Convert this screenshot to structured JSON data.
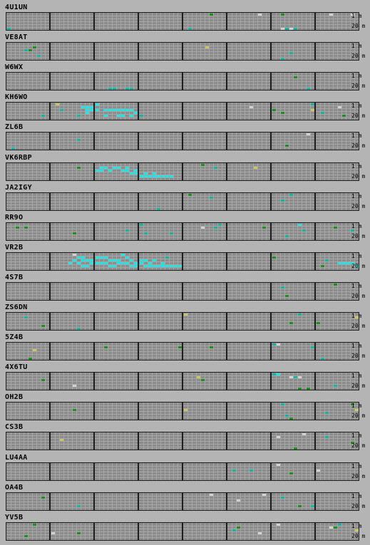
{
  "band_labels": {
    "top": "1 m",
    "bottom": "20 m"
  },
  "colors": {
    "background": "#b4b4b4",
    "cell": "#8c8c8c",
    "cell_line": "#a6a6a6",
    "block_border": "#1e1e1e",
    "cyan": "#19e6e6",
    "teal": "#14b4a0",
    "green": "#1e8c1e",
    "yellow": "#c8c85a",
    "white": "#d2d2d2"
  },
  "grid": {
    "blocks": 8,
    "cols_per_block": 10,
    "rows": 6
  },
  "stations": [
    {
      "callsign": "4U1UN",
      "cells": [
        [
          0,
          5,
          "teal"
        ],
        [
          46,
          0,
          "green"
        ],
        [
          57,
          0,
          "white"
        ],
        [
          62,
          0,
          "green"
        ],
        [
          73,
          0,
          "white"
        ],
        [
          78,
          0,
          "white"
        ],
        [
          41,
          5,
          "teal"
        ],
        [
          62,
          5,
          "white"
        ],
        [
          63,
          5,
          "teal"
        ],
        [
          64,
          5,
          "white"
        ],
        [
          65,
          5,
          "teal"
        ]
      ]
    },
    {
      "callsign": "VE8AT",
      "cells": [
        [
          6,
          1,
          "green"
        ],
        [
          5,
          2,
          "green"
        ],
        [
          4,
          2,
          "teal"
        ],
        [
          7,
          4,
          "teal"
        ],
        [
          64,
          3,
          "teal"
        ],
        [
          62,
          5,
          "teal"
        ],
        [
          45,
          1,
          "yellow"
        ]
      ]
    },
    {
      "callsign": "W6WX",
      "cells": [
        [
          23,
          5,
          "teal"
        ],
        [
          24,
          5,
          "teal"
        ],
        [
          27,
          5,
          "teal"
        ],
        [
          28,
          5,
          "teal"
        ],
        [
          65,
          1,
          "green"
        ],
        [
          68,
          5,
          "teal"
        ]
      ]
    },
    {
      "callsign": "KH6WO",
      "cells": [
        [
          11,
          0,
          "yellow"
        ],
        [
          12,
          2,
          "teal"
        ],
        [
          17,
          1,
          "cyan"
        ],
        [
          18,
          1,
          "cyan"
        ],
        [
          19,
          1,
          "cyan"
        ],
        [
          18,
          2,
          "cyan"
        ],
        [
          18,
          3,
          "cyan"
        ],
        [
          19,
          2,
          "cyan"
        ],
        [
          20,
          2,
          "cyan"
        ],
        [
          20,
          0,
          "cyan"
        ],
        [
          22,
          2,
          "cyan"
        ],
        [
          23,
          2,
          "cyan"
        ],
        [
          24,
          2,
          "cyan"
        ],
        [
          25,
          2,
          "cyan"
        ],
        [
          26,
          2,
          "cyan"
        ],
        [
          27,
          2,
          "cyan"
        ],
        [
          28,
          2,
          "cyan"
        ],
        [
          29,
          3,
          "cyan"
        ],
        [
          26,
          4,
          "cyan"
        ],
        [
          22,
          4,
          "cyan"
        ],
        [
          25,
          4,
          "cyan"
        ],
        [
          28,
          4,
          "cyan"
        ],
        [
          30,
          4,
          "teal"
        ],
        [
          55,
          1,
          "white"
        ],
        [
          60,
          2,
          "green"
        ],
        [
          62,
          3,
          "green"
        ],
        [
          69,
          0,
          "teal"
        ],
        [
          69,
          2,
          "yellow"
        ],
        [
          71,
          3,
          "teal"
        ],
        [
          75,
          1,
          "white"
        ],
        [
          76,
          4,
          "green"
        ],
        [
          8,
          4,
          "teal"
        ],
        [
          16,
          4,
          "teal"
        ]
      ]
    },
    {
      "callsign": "ZL6B",
      "cells": [
        [
          1,
          5,
          "teal"
        ],
        [
          16,
          2,
          "teal"
        ],
        [
          63,
          4,
          "green"
        ],
        [
          68,
          0,
          "white"
        ]
      ]
    },
    {
      "callsign": "VK6RBP",
      "cells": [
        [
          16,
          1,
          "green"
        ],
        [
          20,
          2,
          "cyan"
        ],
        [
          21,
          1,
          "cyan"
        ],
        [
          22,
          1,
          "cyan"
        ],
        [
          23,
          2,
          "cyan"
        ],
        [
          24,
          1,
          "cyan"
        ],
        [
          25,
          1,
          "cyan"
        ],
        [
          26,
          2,
          "cyan"
        ],
        [
          27,
          2,
          "cyan"
        ],
        [
          28,
          3,
          "cyan"
        ],
        [
          29,
          3,
          "cyan"
        ],
        [
          30,
          4,
          "cyan"
        ],
        [
          31,
          4,
          "cyan"
        ],
        [
          32,
          4,
          "cyan"
        ],
        [
          33,
          4,
          "cyan"
        ],
        [
          34,
          4,
          "cyan"
        ],
        [
          35,
          4,
          "cyan"
        ],
        [
          36,
          4,
          "cyan"
        ],
        [
          37,
          4,
          "cyan"
        ],
        [
          27,
          1,
          "cyan"
        ],
        [
          29,
          2,
          "cyan"
        ],
        [
          31,
          3,
          "cyan"
        ],
        [
          33,
          3,
          "cyan"
        ],
        [
          21,
          2,
          "cyan"
        ],
        [
          44,
          0,
          "green"
        ],
        [
          56,
          1,
          "yellow"
        ],
        [
          47,
          1,
          "teal"
        ]
      ]
    },
    {
      "callsign": "JA2IGY",
      "cells": [
        [
          34,
          5,
          "teal"
        ],
        [
          41,
          0,
          "green"
        ],
        [
          46,
          1,
          "teal"
        ],
        [
          62,
          2,
          "teal"
        ],
        [
          64,
          0,
          "teal"
        ]
      ]
    },
    {
      "callsign": "RR9O",
      "cells": [
        [
          2,
          1,
          "green"
        ],
        [
          4,
          1,
          "green"
        ],
        [
          15,
          3,
          "green"
        ],
        [
          27,
          2,
          "teal"
        ],
        [
          30,
          0,
          "teal"
        ],
        [
          31,
          3,
          "teal"
        ],
        [
          37,
          3,
          "teal"
        ],
        [
          44,
          1,
          "white"
        ],
        [
          47,
          1,
          "teal"
        ],
        [
          48,
          0,
          "teal"
        ],
        [
          66,
          0,
          "cyan"
        ],
        [
          67,
          2,
          "teal"
        ],
        [
          78,
          2,
          "teal"
        ],
        [
          74,
          1,
          "green"
        ],
        [
          58,
          1,
          "green"
        ],
        [
          63,
          4,
          "teal"
        ]
      ]
    },
    {
      "callsign": "VR2B",
      "cells": [
        [
          15,
          0,
          "white"
        ],
        [
          14,
          3,
          "cyan"
        ],
        [
          15,
          2,
          "cyan"
        ],
        [
          16,
          1,
          "cyan"
        ],
        [
          17,
          1,
          "cyan"
        ],
        [
          18,
          2,
          "cyan"
        ],
        [
          19,
          2,
          "cyan"
        ],
        [
          20,
          1,
          "cyan"
        ],
        [
          21,
          1,
          "cyan"
        ],
        [
          22,
          1,
          "cyan"
        ],
        [
          23,
          2,
          "cyan"
        ],
        [
          24,
          2,
          "cyan"
        ],
        [
          25,
          2,
          "cyan"
        ],
        [
          26,
          0,
          "cyan"
        ],
        [
          27,
          1,
          "cyan"
        ],
        [
          28,
          2,
          "cyan"
        ],
        [
          29,
          3,
          "cyan"
        ],
        [
          30,
          3,
          "cyan"
        ],
        [
          31,
          4,
          "cyan"
        ],
        [
          32,
          4,
          "cyan"
        ],
        [
          33,
          4,
          "cyan"
        ],
        [
          34,
          4,
          "cyan"
        ],
        [
          35,
          4,
          "cyan"
        ],
        [
          36,
          4,
          "cyan"
        ],
        [
          37,
          4,
          "cyan"
        ],
        [
          38,
          4,
          "cyan"
        ],
        [
          39,
          4,
          "cyan"
        ],
        [
          16,
          3,
          "cyan"
        ],
        [
          17,
          4,
          "cyan"
        ],
        [
          18,
          4,
          "cyan"
        ],
        [
          20,
          3,
          "cyan"
        ],
        [
          22,
          3,
          "cyan"
        ],
        [
          24,
          4,
          "cyan"
        ],
        [
          26,
          3,
          "cyan"
        ],
        [
          28,
          4,
          "cyan"
        ],
        [
          30,
          2,
          "cyan"
        ],
        [
          31,
          2,
          "cyan"
        ],
        [
          33,
          2,
          "cyan"
        ],
        [
          36,
          1,
          "teal"
        ],
        [
          35,
          3,
          "cyan"
        ],
        [
          21,
          3,
          "cyan"
        ],
        [
          23,
          4,
          "cyan"
        ],
        [
          17,
          2,
          "cyan"
        ],
        [
          19,
          3,
          "cyan"
        ],
        [
          25,
          3,
          "cyan"
        ],
        [
          27,
          3,
          "cyan"
        ],
        [
          29,
          4,
          "cyan"
        ],
        [
          32,
          3,
          "cyan"
        ],
        [
          60,
          1,
          "green"
        ],
        [
          71,
          4,
          "green"
        ],
        [
          75,
          3,
          "cyan"
        ],
        [
          76,
          3,
          "cyan"
        ],
        [
          77,
          3,
          "cyan"
        ],
        [
          78,
          3,
          "cyan"
        ],
        [
          79,
          4,
          "cyan"
        ],
        [
          72,
          2,
          "teal"
        ]
      ]
    },
    {
      "callsign": "4S7B",
      "cells": [
        [
          62,
          1,
          "teal"
        ],
        [
          63,
          4,
          "green"
        ],
        [
          74,
          0,
          "green"
        ]
      ]
    },
    {
      "callsign": "ZS6DN",
      "cells": [
        [
          4,
          1,
          "teal"
        ],
        [
          16,
          5,
          "teal"
        ],
        [
          40,
          0,
          "yellow"
        ],
        [
          66,
          0,
          "teal"
        ],
        [
          64,
          3,
          "green"
        ],
        [
          70,
          3,
          "green"
        ],
        [
          79,
          1,
          "yellow"
        ],
        [
          8,
          4,
          "green"
        ]
      ]
    },
    {
      "callsign": "5Z4B",
      "cells": [
        [
          6,
          2,
          "yellow"
        ],
        [
          5,
          5,
          "green"
        ],
        [
          22,
          1,
          "green"
        ],
        [
          39,
          1,
          "green"
        ],
        [
          46,
          1,
          "green"
        ],
        [
          60,
          0,
          "teal"
        ],
        [
          61,
          0,
          "white"
        ],
        [
          69,
          1,
          "teal"
        ],
        [
          71,
          5,
          "teal"
        ]
      ]
    },
    {
      "callsign": "4X6TU",
      "cells": [
        [
          8,
          2,
          "green"
        ],
        [
          15,
          4,
          "white"
        ],
        [
          43,
          1,
          "yellow"
        ],
        [
          44,
          2,
          "green"
        ],
        [
          60,
          0,
          "teal"
        ],
        [
          61,
          0,
          "cyan"
        ],
        [
          64,
          1,
          "white"
        ],
        [
          65,
          1,
          "teal"
        ],
        [
          66,
          1,
          "white"
        ],
        [
          66,
          5,
          "green"
        ],
        [
          68,
          5,
          "green"
        ],
        [
          74,
          4,
          "teal"
        ]
      ]
    },
    {
      "callsign": "OH2B",
      "cells": [
        [
          15,
          2,
          "green"
        ],
        [
          40,
          2,
          "yellow"
        ],
        [
          62,
          0,
          "teal"
        ],
        [
          63,
          4,
          "teal"
        ],
        [
          64,
          5,
          "green"
        ],
        [
          78,
          0,
          "green"
        ],
        [
          79,
          2,
          "yellow"
        ],
        [
          72,
          3,
          "teal"
        ]
      ]
    },
    {
      "callsign": "CS3B",
      "cells": [
        [
          12,
          2,
          "yellow"
        ],
        [
          61,
          1,
          "white"
        ],
        [
          65,
          5,
          "green"
        ],
        [
          67,
          0,
          "white"
        ],
        [
          72,
          1,
          "teal"
        ],
        [
          78,
          3,
          "green"
        ]
      ]
    },
    {
      "callsign": "LU4AA",
      "cells": [
        [
          51,
          2,
          "teal"
        ],
        [
          55,
          2,
          "teal"
        ],
        [
          61,
          0,
          "white"
        ],
        [
          64,
          3,
          "green"
        ],
        [
          70,
          2,
          "white"
        ]
      ]
    },
    {
      "callsign": "OA4B",
      "cells": [
        [
          8,
          1,
          "green"
        ],
        [
          16,
          4,
          "teal"
        ],
        [
          46,
          0,
          "white"
        ],
        [
          52,
          2,
          "white"
        ],
        [
          58,
          0,
          "white"
        ],
        [
          62,
          1,
          "teal"
        ],
        [
          66,
          4,
          "green"
        ],
        [
          69,
          4,
          "teal"
        ]
      ]
    },
    {
      "callsign": "YV5B",
      "cells": [
        [
          6,
          0,
          "green"
        ],
        [
          4,
          4,
          "green"
        ],
        [
          10,
          3,
          "white"
        ],
        [
          16,
          3,
          "green"
        ],
        [
          52,
          1,
          "green"
        ],
        [
          51,
          2,
          "teal"
        ],
        [
          57,
          3,
          "white"
        ],
        [
          61,
          0,
          "white"
        ],
        [
          73,
          1,
          "white"
        ],
        [
          74,
          1,
          "green"
        ],
        [
          75,
          0,
          "teal"
        ],
        [
          79,
          2,
          "yellow"
        ]
      ]
    }
  ]
}
